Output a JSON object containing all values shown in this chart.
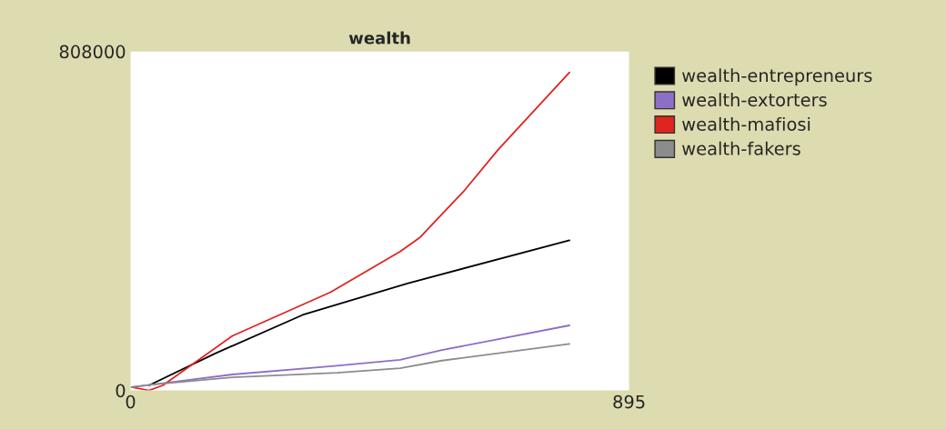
{
  "chart_data": {
    "type": "line",
    "title": "wealth",
    "xlim": [
      0,
      895
    ],
    "xticks": [
      0,
      895
    ],
    "ylim": [
      0,
      808000
    ],
    "yticks": [
      0,
      808000
    ],
    "grid": false,
    "legend": "right",
    "marker": "none",
    "line_style": "solid",
    "series": [
      {
        "name": "wealth-entrepreneurs",
        "color": "#000000",
        "x": [
          33,
          152,
          309,
          497,
          788
        ],
        "values": [
          12000,
          88000,
          180000,
          255000,
          358000
        ]
      },
      {
        "name": "wealth-extorters",
        "color": "#8e6fc6",
        "x": [
          2,
          39,
          183,
          371,
          484,
          559,
          788
        ],
        "values": [
          8000,
          14000,
          38000,
          59000,
          73000,
          96000,
          155000
        ]
      },
      {
        "name": "wealth-mafiosi",
        "color": "#e0241f",
        "x": [
          2,
          33,
          58,
          183,
          359,
          484,
          519,
          597,
          660,
          788
        ],
        "values": [
          8000,
          0,
          12000,
          130000,
          234000,
          331000,
          364000,
          473000,
          574000,
          758000
        ]
      },
      {
        "name": "wealth-fakers",
        "color": "#8c8c8c",
        "x": [
          2,
          39,
          183,
          371,
          484,
          559,
          788
        ],
        "values": [
          8000,
          14000,
          31000,
          42000,
          53000,
          71000,
          111000
        ]
      }
    ]
  }
}
